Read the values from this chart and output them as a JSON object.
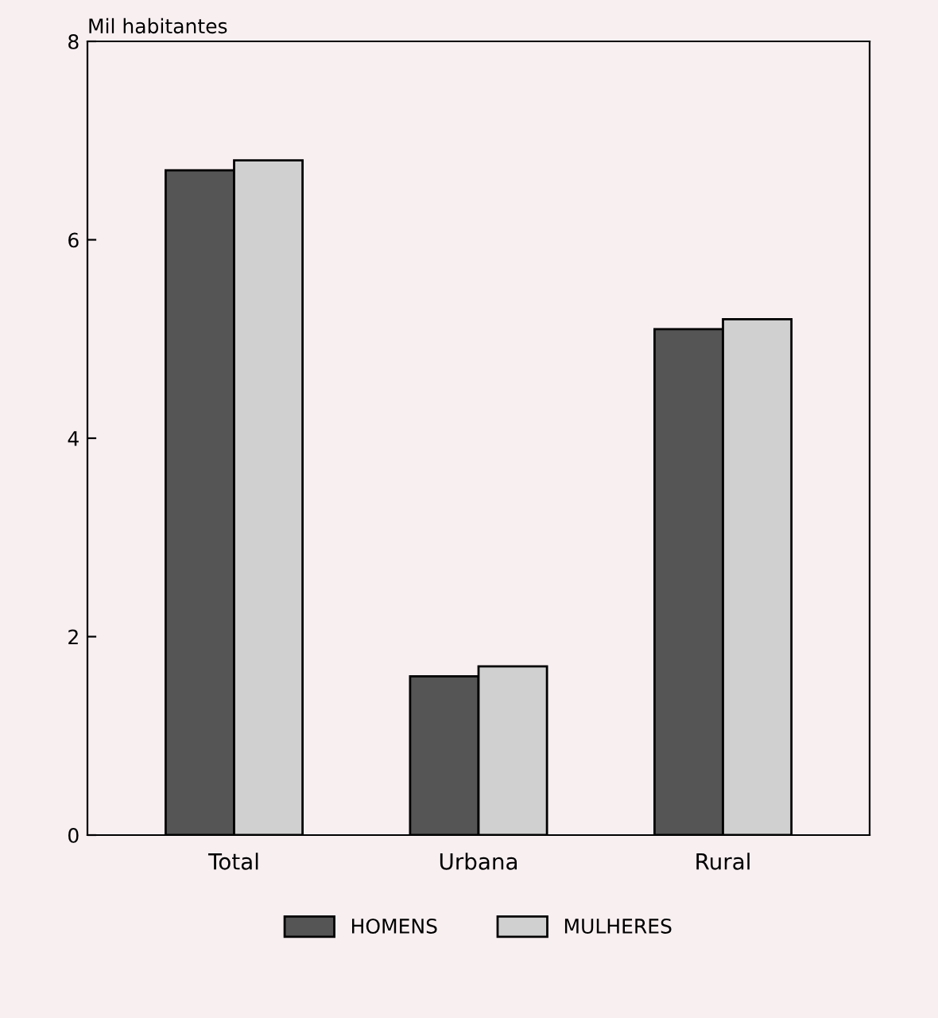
{
  "chart_data": {
    "type": "bar",
    "ylabel": "Mil habitantes",
    "categories": [
      "Total",
      "Urbana",
      "Rural"
    ],
    "series": [
      {
        "name": "HOMENS",
        "color": "#555555",
        "values": [
          6.7,
          1.6,
          5.1
        ]
      },
      {
        "name": "MULHERES",
        "color": "#d0d0d0",
        "values": [
          6.8,
          1.7,
          5.2
        ]
      }
    ],
    "ylim": [
      0,
      8
    ],
    "yticks": [
      0,
      2,
      4,
      6,
      8
    ],
    "grid": false,
    "legend": "bottom"
  }
}
